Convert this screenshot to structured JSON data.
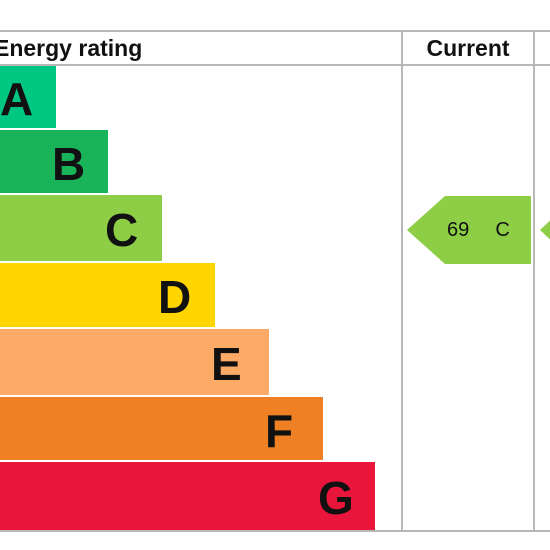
{
  "chart_data": {
    "type": "bar",
    "title": "Energy rating",
    "column_headers": {
      "current": "Current"
    },
    "bands": [
      {
        "letter": "A",
        "color": "#00c781"
      },
      {
        "letter": "B",
        "color": "#19b459"
      },
      {
        "letter": "C",
        "color": "#8dce46"
      },
      {
        "letter": "D",
        "color": "#ffd500"
      },
      {
        "letter": "E",
        "color": "#fcaa65"
      },
      {
        "letter": "F",
        "color": "#ef8023"
      },
      {
        "letter": "G",
        "color": "#e9153b"
      }
    ],
    "current": {
      "score": "69",
      "band": "C",
      "color": "#8dce46"
    }
  }
}
